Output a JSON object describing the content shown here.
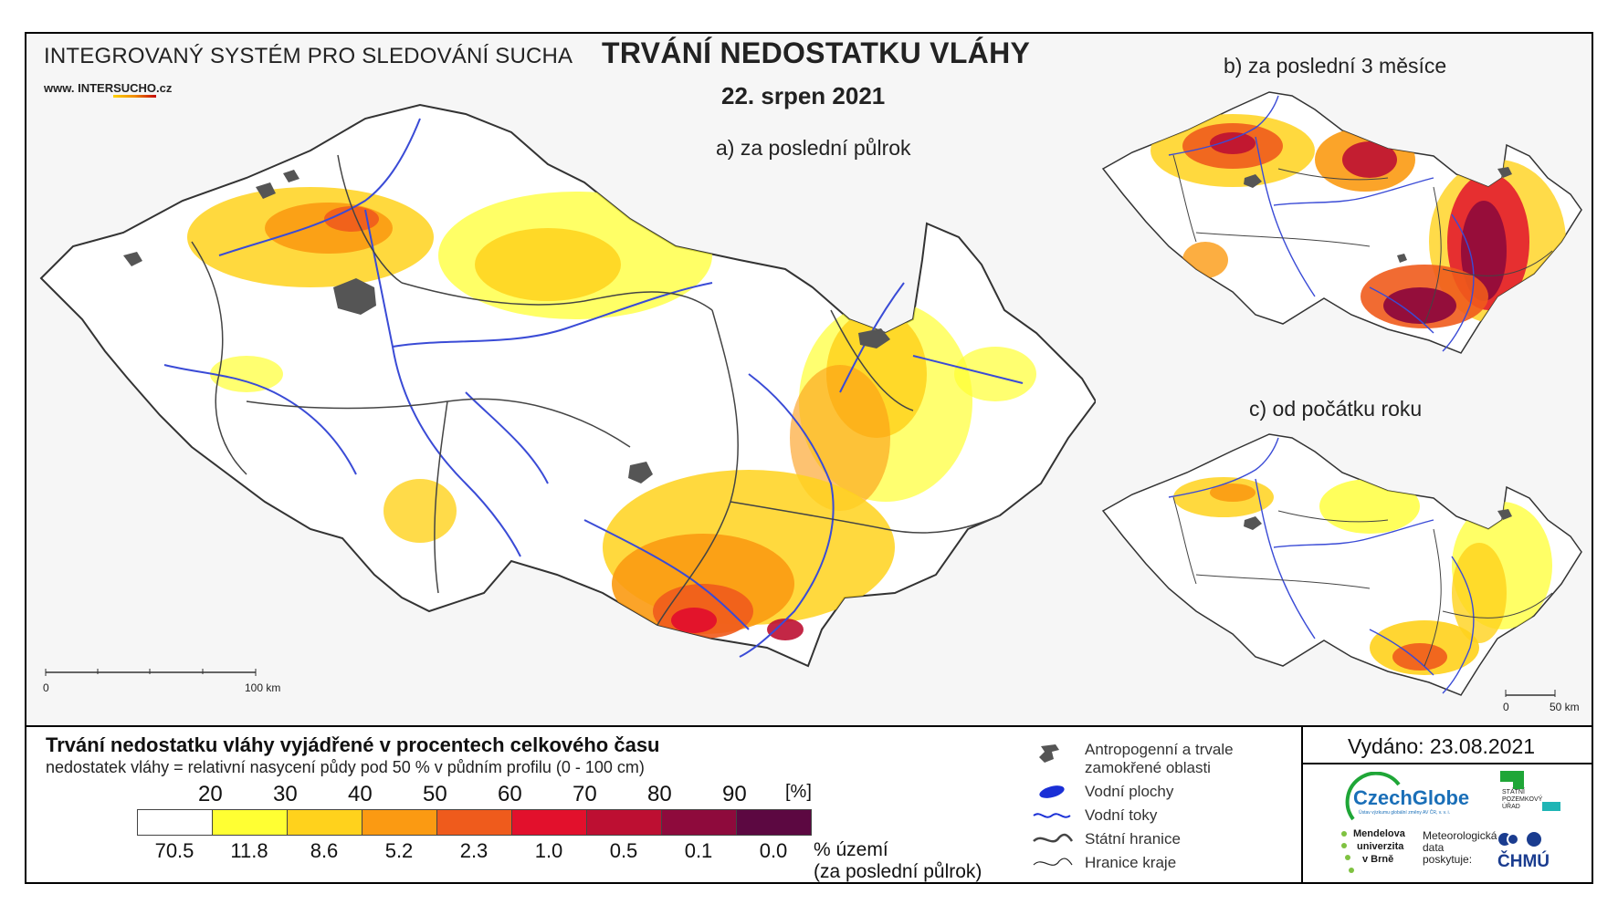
{
  "header": {
    "system_title": "INTEGROVANÝ SYSTÉM PRO SLEDOVÁNÍ SUCHA",
    "website_prefix": "www. INTER",
    "website_highlight": "SUCHO",
    "website_suffix": ".cz",
    "main_title": "TRVÁNÍ NEDOSTATKU VLÁHY",
    "date": "22. srpen 2021"
  },
  "maps": {
    "a_label": "a) za poslední půlrok",
    "b_label": "b) za poslední 3 měsíce",
    "c_label": "c) od počátku roku",
    "scale_a": {
      "start": "0",
      "end": "100 km"
    },
    "scale_small": {
      "start": "0",
      "end": "50 km"
    }
  },
  "legend": {
    "title": "Trvání nedostatku vláhy vyjádřené v procentech celkového času",
    "subtitle": "nedostatek vláhy = relativní nasycení půdy pod 50 % v půdním profilu (0 - 100 cm)",
    "unit": "[%]",
    "thresholds": [
      "20",
      "30",
      "40",
      "50",
      "60",
      "70",
      "80",
      "90"
    ],
    "classes": [
      {
        "color": "#ffffff",
        "pct": "70.5"
      },
      {
        "color": "#ffff33",
        "pct": "11.8"
      },
      {
        "color": "#ffd21c",
        "pct": "8.6"
      },
      {
        "color": "#fb9a12",
        "pct": "5.2"
      },
      {
        "color": "#ef5b1c",
        "pct": "2.3"
      },
      {
        "color": "#e2102c",
        "pct": "1.0"
      },
      {
        "color": "#bd0f32",
        "pct": "0.5"
      },
      {
        "color": "#8e0a3c",
        "pct": "0.1"
      },
      {
        "color": "#5c0841",
        "pct": "0.0"
      }
    ],
    "area_label_1": "% území",
    "area_label_2": "(za poslední půlrok)"
  },
  "symbols": {
    "anthropogenic_1": "Antropogenní a trvale",
    "anthropogenic_2": "zamokřené oblasti",
    "water_bodies": "Vodní plochy",
    "rivers": "Vodní toky",
    "state_border": "Státní hranice",
    "region_border": "Hranice kraje"
  },
  "issued": "Vydáno: 23.08.2021",
  "logos": {
    "czechglobe": "CzechGlobe",
    "czechglobe_sub": "Ústav výzkumu globální změny AV ČR, v. v. i.",
    "spu_1": "STÁTNÍ",
    "spu_2": "POZEMKOVÝ",
    "spu_3": "ÚŘAD",
    "mendel_1": "Mendelova",
    "mendel_2": "univerzita",
    "mendel_3": "v Brně",
    "meteo_1": "Meteorologická",
    "meteo_2": "data",
    "meteo_3": "poskytuje:",
    "chmu": "ČHMÚ"
  },
  "colors": {
    "river": "#3a4bd6",
    "urban": "#555555",
    "brand_green": "#1fa637",
    "brand_blue": "#1a6fb8"
  }
}
